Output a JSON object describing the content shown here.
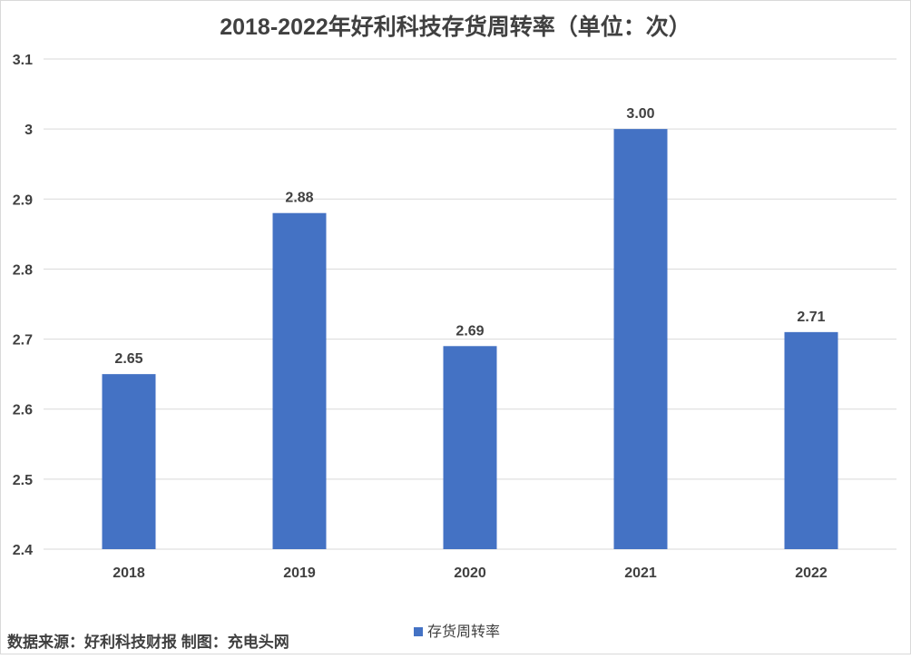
{
  "chart_data": {
    "type": "bar",
    "title": "2018-2022年好利科技存货周转率（单位：次）",
    "categories": [
      "2018",
      "2019",
      "2020",
      "2021",
      "2022"
    ],
    "series": [
      {
        "name": "存货周转率",
        "values": [
          2.65,
          2.88,
          2.69,
          3.0,
          2.71
        ],
        "value_labels": [
          "2.65",
          "2.88",
          "2.69",
          "3.00",
          "2.71"
        ]
      }
    ],
    "ylim": [
      2.4,
      3.1
    ],
    "yticks": [
      2.4,
      2.5,
      2.6,
      2.7,
      2.8,
      2.9,
      3,
      3.1
    ],
    "ytick_labels": [
      "2.4",
      "2.5",
      "2.6",
      "2.7",
      "2.8",
      "2.9",
      "3",
      "3.1"
    ],
    "grid": true,
    "legend_position": "bottom",
    "bar_color": "#4472C4"
  },
  "source_note": "数据来源：好利科技财报  制图：充电头网"
}
